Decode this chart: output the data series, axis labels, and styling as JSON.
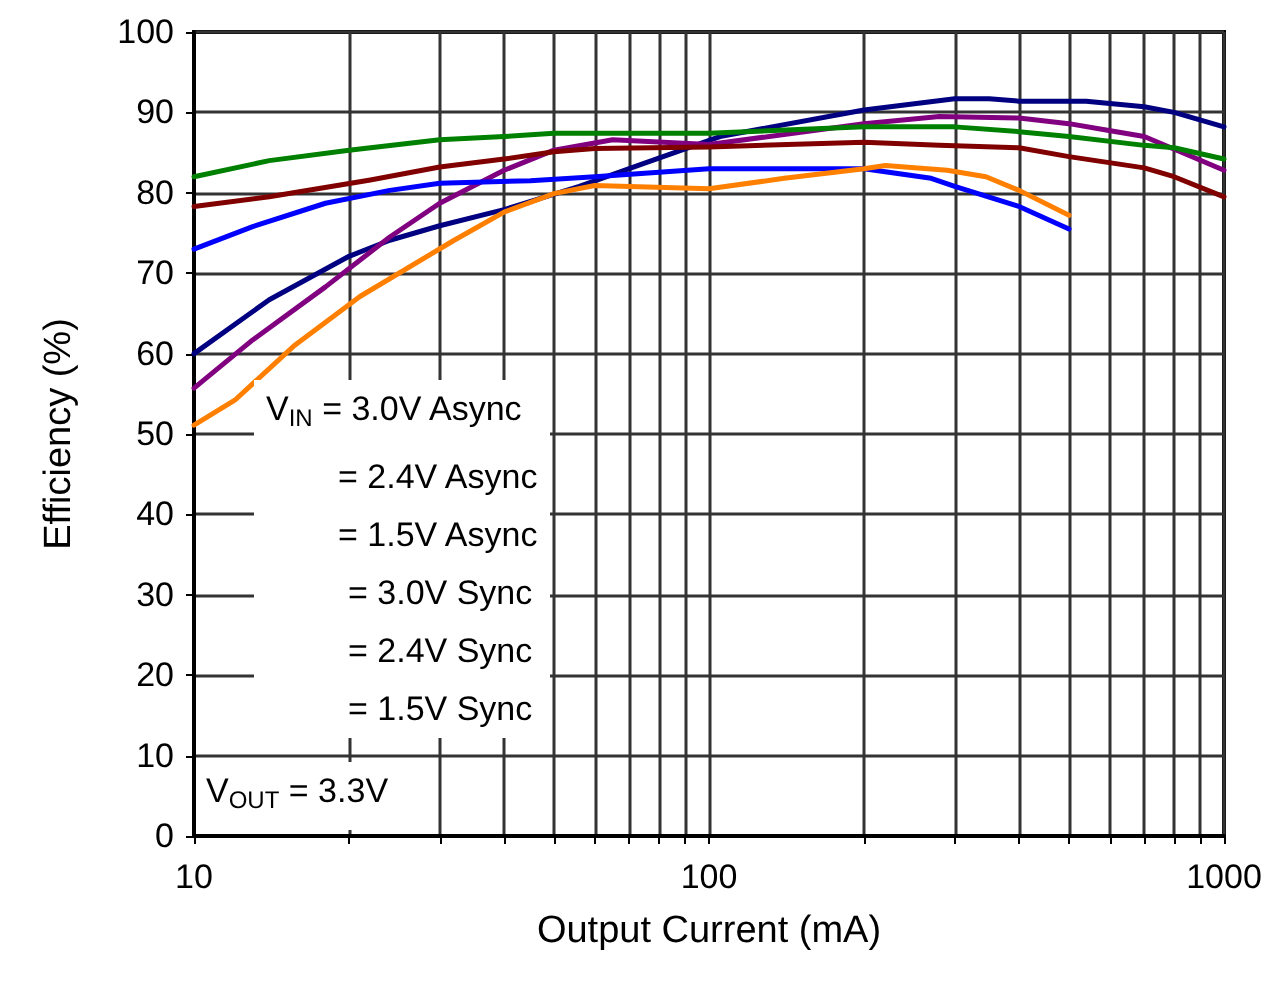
{
  "chart_data": {
    "type": "line",
    "xlabel": "Output Current (mA)",
    "ylabel": "Efficiency (%)",
    "log": "x",
    "xlim": [
      10,
      1000
    ],
    "xticks": [
      10,
      {
        "value": 20,
        "label": null
      },
      {
        "value": 30,
        "label": null
      },
      {
        "value": 40,
        "label": null
      },
      {
        "value": 50,
        "label": null
      },
      {
        "value": 60,
        "label": null
      },
      {
        "value": 70,
        "label": null
      },
      {
        "value": 80,
        "label": null
      },
      {
        "value": 90,
        "label": null
      },
      100,
      {
        "value": 200,
        "label": null
      },
      {
        "value": 300,
        "label": null
      },
      {
        "value": 400,
        "label": null
      },
      {
        "value": 500,
        "label": null
      },
      {
        "value": 600,
        "label": null
      },
      {
        "value": 700,
        "label": null
      },
      {
        "value": 800,
        "label": null
      },
      {
        "value": 900,
        "label": null
      },
      1000
    ],
    "ylim": [
      0,
      100
    ],
    "yticks": [
      0,
      10,
      20,
      30,
      40,
      50,
      60,
      70,
      80,
      90,
      100
    ],
    "grid": true,
    "marker": "none",
    "line_style": "solid",
    "series": [
      {
        "color": "#000080",
        "x": [
          10,
          14,
          20,
          24,
          30,
          40,
          56,
          75,
          105,
          200,
          300,
          350,
          400,
          540,
          700,
          800,
          1000
        ],
        "values": [
          60,
          66.7,
          72.1,
          74.1,
          75.9,
          77.9,
          80.8,
          83.7,
          87,
          90.3,
          91.7,
          91.7,
          91.4,
          91.4,
          90.7,
          90,
          88.2
        ]
      },
      {
        "color": "#800080",
        "x": [
          10,
          13,
          18,
          24,
          30,
          40,
          50,
          65,
          100,
          200,
          280,
          400,
          500,
          590,
          700,
          1000
        ],
        "values": [
          55.7,
          61.7,
          68.3,
          74.5,
          78.7,
          82.8,
          85.3,
          86.6,
          86,
          88.6,
          89.5,
          89.3,
          88.6,
          87.8,
          87,
          82.8
        ]
      },
      {
        "color": "#008000",
        "x": [
          10,
          14,
          20,
          30,
          40,
          50,
          100,
          200,
          300,
          400,
          500,
          700,
          800,
          1000
        ],
        "values": [
          82,
          84,
          85.3,
          86.6,
          87,
          87.4,
          87.4,
          88.2,
          88.2,
          87.6,
          87,
          85.9,
          85.6,
          84.2
        ]
      },
      {
        "color": "#800000",
        "x": [
          10,
          14,
          22,
          30,
          40,
          50,
          60,
          100,
          200,
          280,
          400,
          500,
          700,
          800,
          1000
        ],
        "values": [
          78.3,
          79.5,
          81.6,
          83.2,
          84.2,
          85.1,
          85.5,
          85.7,
          86.3,
          85.9,
          85.6,
          84.5,
          83.1,
          82,
          79.5
        ]
      },
      {
        "color": "#0000ff",
        "x": [
          10,
          13,
          18,
          24,
          30,
          45,
          60,
          100,
          200,
          270,
          300,
          400,
          500
        ],
        "values": [
          73,
          75.8,
          78.7,
          80.3,
          81.2,
          81.5,
          82,
          83,
          83,
          81.8,
          80.8,
          78.3,
          75.5
        ]
      },
      {
        "color": "#ff8000",
        "x": [
          10,
          12,
          15.6,
          21,
          32,
          40,
          50,
          60,
          100,
          140,
          200,
          220,
          290,
          345,
          400,
          500
        ],
        "values": [
          51.1,
          54.2,
          60.9,
          67.1,
          74.1,
          77.6,
          79.9,
          80.9,
          80.5,
          81.8,
          83,
          83.4,
          82.8,
          82,
          80.3,
          77.2
        ]
      }
    ],
    "annotations": [
      "V$_{IN}$ = 3.0V Async",
      "= 2.4V Async",
      "= 1.5V Async",
      "= 3.0V Sync",
      "= 2.4V Sync",
      "= 1.5V Sync",
      "V$_{OUT}$ = 3.3V"
    ]
  }
}
